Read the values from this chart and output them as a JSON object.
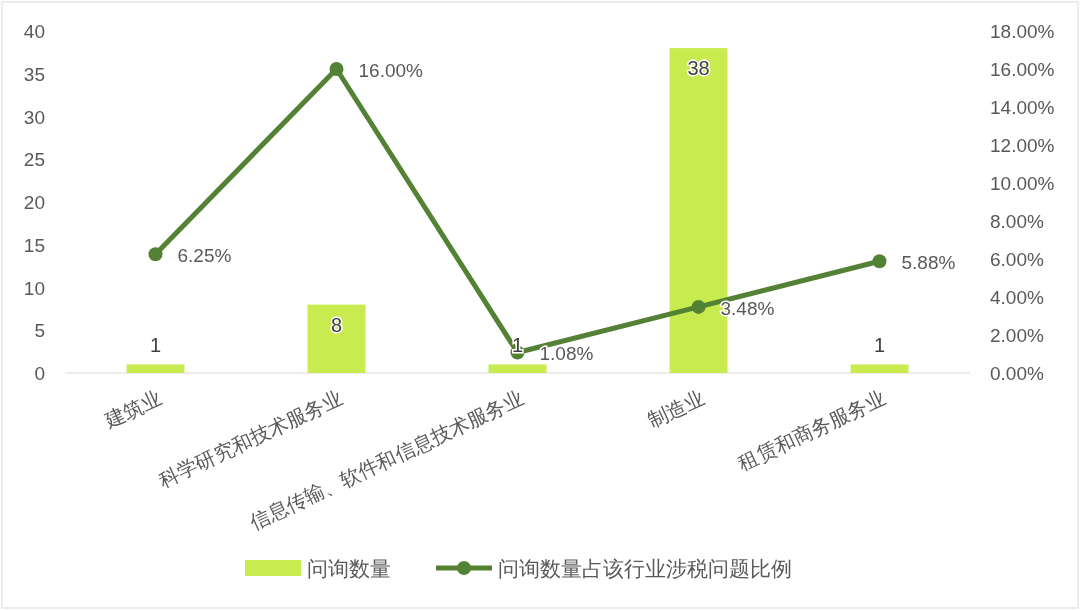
{
  "chart_data": {
    "type": "bar",
    "categories": [
      "建筑业",
      "科学研究和技术服务业",
      "信息传输、软件和信息技术服务业",
      "制造业",
      "租赁和商务服务业"
    ],
    "series": [
      {
        "name": "问询数量",
        "color": "#c8eb4f",
        "values": [
          1,
          8,
          1,
          38,
          1
        ],
        "value_labels": [
          "1",
          "8",
          "1",
          "38",
          "1"
        ]
      },
      {
        "name": "问询数量占该行业涉税问题比例",
        "type": "line",
        "axis": "y2",
        "color": "#548235",
        "values": [
          6.25,
          16.0,
          1.08,
          3.48,
          5.88
        ],
        "value_labels": [
          "6.25%",
          "16.00%",
          "1.08%",
          "3.48%",
          "5.88%"
        ]
      }
    ],
    "marker": "circle",
    "legend": "bottom",
    "ylim": [
      0,
      40
    ],
    "yticks": [
      0,
      5,
      10,
      15,
      20,
      25,
      30,
      35,
      40
    ],
    "y2lim": [
      0,
      18
    ],
    "y2ticks": [
      {
        "value": 0,
        "label": "0.00%"
      },
      {
        "value": 2,
        "label": "2.00%"
      },
      {
        "value": 4,
        "label": "4.00%"
      },
      {
        "value": 6,
        "label": "6.00%"
      },
      {
        "value": 8,
        "label": "8.00%"
      },
      {
        "value": 10,
        "label": "10.00%"
      },
      {
        "value": 12,
        "label": "12.00%"
      },
      {
        "value": 14,
        "label": "14.00%"
      },
      {
        "value": 16,
        "label": "16.00%"
      },
      {
        "value": 18,
        "label": "18.00%"
      }
    ]
  }
}
